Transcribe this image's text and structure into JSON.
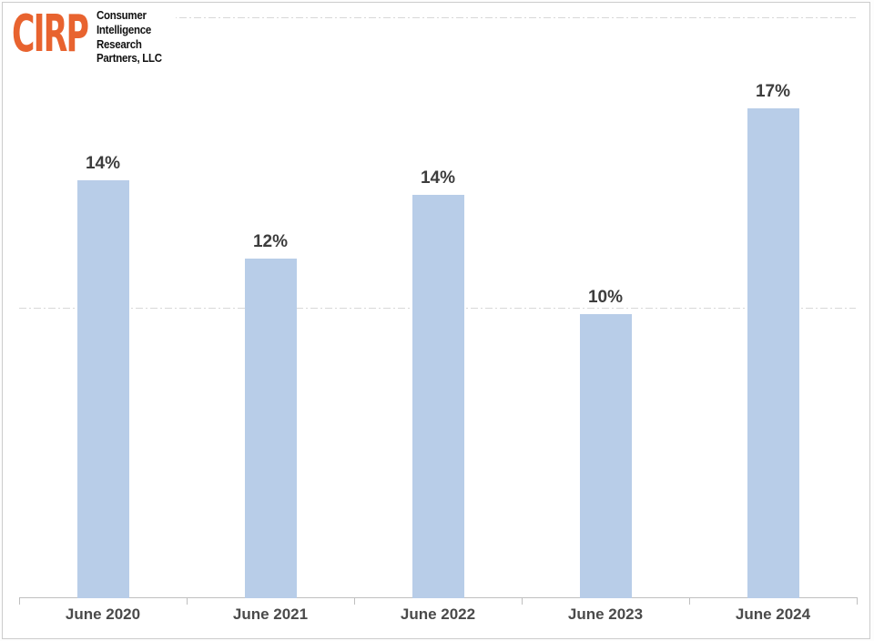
{
  "logo": {
    "acronym": "CIRP",
    "name_lines": [
      "Consumer",
      "Intelligence",
      "Research",
      "Partners, LLC"
    ],
    "accent_color": "#e8632f"
  },
  "chart_data": {
    "type": "bar",
    "categories": [
      "June 2020",
      "June 2021",
      "June 2022",
      "June 2023",
      "June 2024"
    ],
    "values": [
      14,
      12,
      14,
      10,
      17
    ],
    "value_labels": [
      "14%",
      "12%",
      "14%",
      "10%",
      "17%"
    ],
    "rendered_values": [
      14.4,
      11.7,
      13.9,
      9.8,
      16.9
    ],
    "title": "",
    "xlabel": "",
    "ylabel": "",
    "ylim": [
      0,
      20
    ],
    "gridlines_pct": [
      10,
      20
    ],
    "grid_style": "dash-dot",
    "legend": "none",
    "bar_color": "#b8cde8",
    "value_label_color": "#3d3d3d",
    "axis_label_color": "#4a4a4a",
    "axis_line_color": "#bfbfbf"
  }
}
